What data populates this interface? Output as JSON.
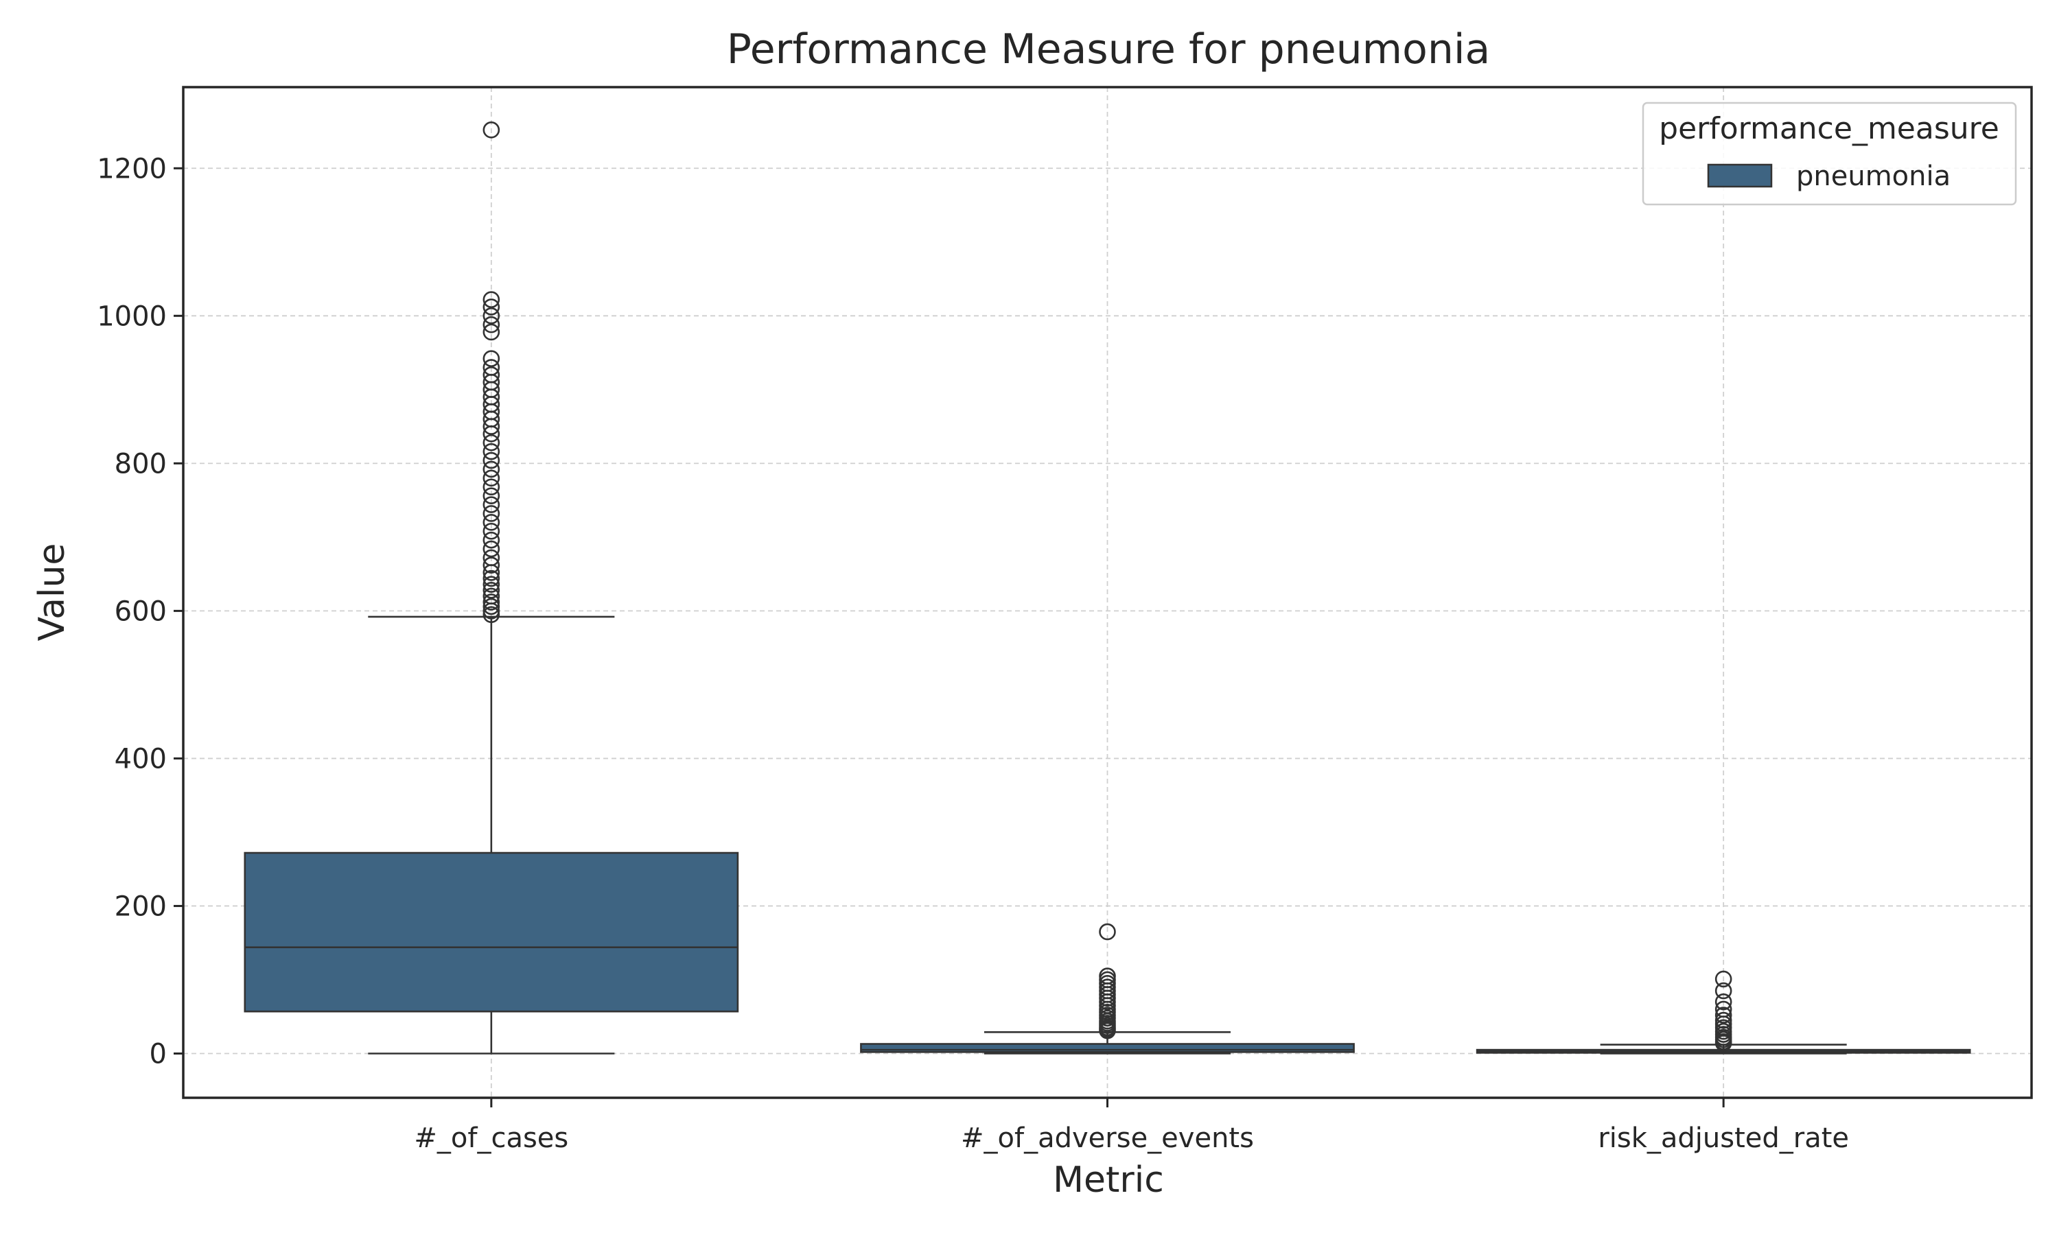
{
  "colors": {
    "box_fill": "#3e6482",
    "box_edge": "#333333",
    "grid": "#cfcfcf",
    "frame": "#262626"
  },
  "chart_data": {
    "type": "box",
    "title": "Performance Measure for pneumonia",
    "xlabel": "Metric",
    "ylabel": "Value",
    "categories": [
      "#_of_cases",
      "#_of_adverse_events",
      "risk_adjusted_rate"
    ],
    "y_ticks": [
      0,
      200,
      400,
      600,
      800,
      1000,
      1200
    ],
    "y_tick_labels": [
      "0",
      "200",
      "400",
      "600",
      "800",
      "1000",
      "1200"
    ],
    "ylim": [
      -60,
      1310
    ],
    "grid": true,
    "legend": {
      "title": "performance_measure",
      "entries": [
        "pneumonia"
      ],
      "placement": "top-right"
    },
    "series": [
      {
        "name": "pneumonia",
        "boxes": [
          {
            "category": "#_of_cases",
            "whisker_low": 0,
            "q1": 57,
            "median": 144,
            "q3": 272,
            "whisker_high": 592,
            "outliers": [
              1252,
              1022,
              1012,
              1000,
              988,
              978,
              942,
              930,
              920,
              910,
              900,
              890,
              880,
              870,
              860,
              850,
              840,
              828,
              816,
              804,
              792,
              780,
              768,
              756,
              744,
              732,
              720,
              708,
              696,
              684,
              672,
              662,
              652,
              644,
              636,
              628,
              620,
              612,
              606,
              600,
              595
            ]
          },
          {
            "category": "#_of_adverse_events",
            "whisker_low": 0,
            "q1": 2,
            "median": 5,
            "q3": 13,
            "whisker_high": 29,
            "outliers": [
              165,
              105,
              100,
              95,
              90,
              85,
              80,
              75,
              70,
              65,
              60,
              56,
              52,
              48,
              44,
              41,
              38,
              35,
              33,
              31
            ]
          },
          {
            "category": "risk_adjusted_rate",
            "whisker_low": 0,
            "q1": 1,
            "median": 2.5,
            "q3": 5,
            "whisker_high": 12,
            "outliers": [
              101,
              85,
              70,
              60,
              52,
              45,
              40,
              35,
              30,
              26,
              22,
              19,
              16,
              14
            ]
          }
        ]
      }
    ]
  }
}
